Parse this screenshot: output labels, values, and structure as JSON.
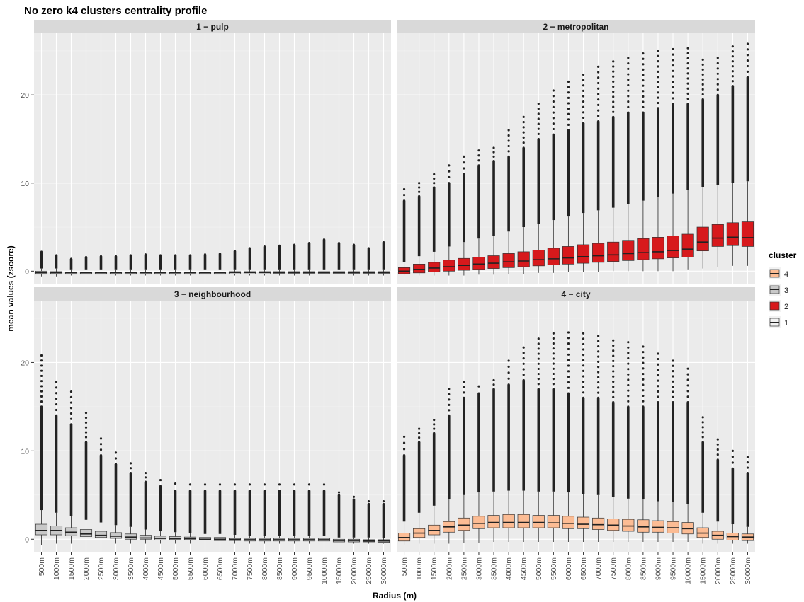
{
  "chart_data": {
    "type": "boxplot",
    "title": "No zero k4  clusters centrality profile",
    "xlabel": "Radius (m)",
    "ylabel": "mean values (zscore)",
    "ylim": [
      -1.5,
      27
    ],
    "yticks": [
      0,
      10,
      20
    ],
    "grid": true,
    "legend": {
      "title": "cluster",
      "placement": "right",
      "entries": [
        {
          "label": "4",
          "color": "#fcbc94"
        },
        {
          "label": "3",
          "color": "#c8c8c8"
        },
        {
          "label": "2",
          "color": "#d7191c"
        },
        {
          "label": "1",
          "color": "#f2f2f2"
        }
      ]
    },
    "categories": [
      "500m",
      "1000m",
      "1500m",
      "2000m",
      "2500m",
      "3000m",
      "3500m",
      "4000m",
      "4500m",
      "5000m",
      "5500m",
      "6000m",
      "6500m",
      "7000m",
      "7500m",
      "8000m",
      "8500m",
      "9000m",
      "9500m",
      "10000m",
      "15000m",
      "20000m",
      "25000m",
      "30000m"
    ],
    "panels": [
      {
        "label": "1 − pulp",
        "color": "#f2f2f2",
        "q1": [
          -0.35,
          -0.35,
          -0.35,
          -0.35,
          -0.35,
          -0.35,
          -0.35,
          -0.35,
          -0.35,
          -0.35,
          -0.35,
          -0.35,
          -0.35,
          -0.3,
          -0.3,
          -0.3,
          -0.25,
          -0.25,
          -0.25,
          -0.25,
          -0.25,
          -0.25,
          -0.25,
          -0.25
        ],
        "median": [
          -0.2,
          -0.2,
          -0.2,
          -0.2,
          -0.2,
          -0.2,
          -0.2,
          -0.2,
          -0.2,
          -0.2,
          -0.2,
          -0.2,
          -0.2,
          -0.15,
          -0.15,
          -0.15,
          -0.15,
          -0.15,
          -0.15,
          -0.15,
          -0.15,
          -0.15,
          -0.15,
          -0.15
        ],
        "q3": [
          0,
          -0.05,
          -0.1,
          -0.1,
          -0.1,
          -0.1,
          -0.1,
          -0.1,
          -0.1,
          -0.1,
          -0.1,
          -0.1,
          -0.1,
          -0.05,
          -0.05,
          -0.05,
          -0.05,
          -0.05,
          -0.05,
          -0.05,
          -0.05,
          -0.05,
          -0.05,
          -0.05
        ],
        "wlo": [
          -0.6,
          -0.6,
          -0.5,
          -0.5,
          -0.5,
          -0.5,
          -0.5,
          -0.5,
          -0.5,
          -0.5,
          -0.5,
          -0.5,
          -0.5,
          -0.5,
          -0.5,
          -0.5,
          -0.5,
          -0.5,
          -0.5,
          -0.5,
          -0.5,
          -0.5,
          -0.5,
          -0.5
        ],
        "whi": [
          0.3,
          0.3,
          0.2,
          0.2,
          0.2,
          0.2,
          0.2,
          0.2,
          0.2,
          0.2,
          0.2,
          0.2,
          0.2,
          0.2,
          0.2,
          0.2,
          0.2,
          0.2,
          0.2,
          0.2,
          0.2,
          0.2,
          0.2,
          0.2
        ],
        "omax": [
          2.2,
          1.8,
          1.4,
          1.6,
          1.7,
          1.7,
          1.8,
          1.9,
          1.8,
          1.8,
          1.8,
          1.9,
          2.0,
          2.3,
          2.6,
          2.8,
          2.9,
          3.0,
          3.2,
          3.6,
          3.2,
          3.0,
          2.6,
          3.3
        ]
      },
      {
        "label": "2 − metropolitan",
        "color": "#d7191c",
        "q1": [
          -0.3,
          -0.2,
          -0.1,
          0,
          0.1,
          0.2,
          0.3,
          0.4,
          0.5,
          0.6,
          0.7,
          0.8,
          0.9,
          1.0,
          1.1,
          1.2,
          1.3,
          1.4,
          1.5,
          1.6,
          2.3,
          2.8,
          2.9,
          2.8
        ],
        "median": [
          0,
          0.2,
          0.35,
          0.5,
          0.65,
          0.8,
          0.9,
          1.05,
          1.15,
          1.3,
          1.4,
          1.5,
          1.65,
          1.75,
          1.85,
          2.0,
          2.1,
          2.2,
          2.35,
          2.5,
          3.3,
          3.75,
          3.85,
          3.8
        ],
        "q3": [
          0.4,
          0.8,
          1.0,
          1.25,
          1.45,
          1.6,
          1.75,
          2.0,
          2.2,
          2.4,
          2.6,
          2.8,
          3.0,
          3.15,
          3.3,
          3.5,
          3.7,
          3.85,
          4.0,
          4.2,
          5.0,
          5.3,
          5.5,
          5.6
        ],
        "wlo": [
          -0.5,
          -0.5,
          -0.5,
          -0.5,
          -0.5,
          -0.4,
          -0.4,
          -0.3,
          -0.3,
          -0.2,
          -0.2,
          -0.1,
          -0.1,
          -0.1,
          0,
          0,
          0,
          0,
          0,
          0.2,
          0.3,
          0.5,
          0.6,
          0.6
        ],
        "whi": [
          1.0,
          1.7,
          2.2,
          2.8,
          3.3,
          3.7,
          4.0,
          4.5,
          5.0,
          5.4,
          5.8,
          6.2,
          6.6,
          6.9,
          7.2,
          7.6,
          8.0,
          8.4,
          8.8,
          9.2,
          9.5,
          9.8,
          10.0,
          10.2
        ],
        "dense": [
          8.0,
          8.5,
          9.5,
          10.0,
          11.0,
          12.0,
          12.5,
          13.0,
          14.0,
          15.0,
          15.5,
          16.0,
          16.8,
          17.0,
          17.5,
          18.0,
          18.0,
          18.5,
          19.0,
          19.0,
          19.5,
          20.0,
          21.0,
          22.0
        ],
        "omax": [
          9.3,
          10.0,
          11.0,
          12.0,
          13.0,
          13.7,
          14.0,
          16.0,
          17.5,
          19.0,
          20.5,
          21.5,
          22.3,
          23.2,
          23.8,
          24.2,
          24.7,
          25.0,
          25.2,
          25.3,
          24.0,
          24.2,
          25.5,
          25.8
        ]
      },
      {
        "label": "3 − neighbourhood",
        "color": "#c8c8c8",
        "q1": [
          0.5,
          0.5,
          0.4,
          0.3,
          0.2,
          0.1,
          0,
          0,
          -0.1,
          -0.1,
          -0.1,
          -0.1,
          -0.15,
          -0.15,
          -0.2,
          -0.2,
          -0.2,
          -0.2,
          -0.2,
          -0.2,
          -0.3,
          -0.3,
          -0.3,
          -0.35
        ],
        "median": [
          1.0,
          1.0,
          0.8,
          0.6,
          0.45,
          0.35,
          0.25,
          0.15,
          0.1,
          0.05,
          0.05,
          0,
          0,
          0,
          -0.05,
          -0.05,
          -0.05,
          -0.05,
          -0.05,
          -0.05,
          -0.15,
          -0.15,
          -0.2,
          -0.2
        ],
        "q3": [
          1.7,
          1.5,
          1.3,
          1.1,
          0.9,
          0.75,
          0.6,
          0.45,
          0.35,
          0.3,
          0.25,
          0.2,
          0.2,
          0.15,
          0.1,
          0.1,
          0.1,
          0.1,
          0.1,
          0.1,
          0,
          0,
          -0.05,
          -0.05
        ],
        "wlo": [
          -0.7,
          -0.5,
          -0.5,
          -0.5,
          -0.5,
          -0.5,
          -0.5,
          -0.5,
          -0.5,
          -0.5,
          -0.5,
          -0.5,
          -0.5,
          -0.5,
          -0.5,
          -0.5,
          -0.5,
          -0.5,
          -0.5,
          -0.5,
          -0.5,
          -0.5,
          -0.5,
          -0.5
        ],
        "whi": [
          3.3,
          3.0,
          2.6,
          2.2,
          1.9,
          1.6,
          1.4,
          1.1,
          0.9,
          0.8,
          0.7,
          0.6,
          0.6,
          0.5,
          0.4,
          0.4,
          0.4,
          0.4,
          0.4,
          0.4,
          0.2,
          0.2,
          0.2,
          0.1
        ],
        "dense": [
          15.0,
          14.0,
          13.0,
          11.0,
          9.5,
          8.5,
          7.5,
          6.5,
          6.0,
          5.5,
          5.5,
          5.5,
          5.5,
          5.5,
          5.5,
          5.5,
          5.5,
          5.5,
          5.5,
          5.5,
          5.0,
          4.5,
          4.0,
          4.0
        ],
        "omax": [
          20.8,
          17.8,
          16.7,
          14.3,
          11.4,
          9.8,
          8.6,
          7.5,
          6.7,
          6.3,
          6.2,
          6.2,
          6.2,
          6.2,
          6.2,
          6.2,
          6.2,
          6.2,
          6.2,
          6.2,
          5.3,
          4.8,
          4.3,
          4.3
        ]
      },
      {
        "label": "4 − city",
        "color": "#fcbc94",
        "q1": [
          -0.2,
          0.2,
          0.5,
          0.8,
          1.0,
          1.2,
          1.3,
          1.3,
          1.3,
          1.3,
          1.3,
          1.2,
          1.2,
          1.1,
          1.0,
          0.9,
          0.8,
          0.8,
          0.7,
          0.6,
          0.2,
          0,
          -0.1,
          -0.15
        ],
        "median": [
          0.2,
          0.7,
          1.0,
          1.4,
          1.6,
          1.8,
          1.9,
          1.9,
          1.9,
          1.9,
          1.85,
          1.8,
          1.7,
          1.65,
          1.6,
          1.5,
          1.4,
          1.35,
          1.3,
          1.2,
          0.7,
          0.45,
          0.3,
          0.25
        ],
        "q3": [
          0.7,
          1.2,
          1.6,
          2.0,
          2.4,
          2.6,
          2.7,
          2.8,
          2.8,
          2.7,
          2.7,
          2.6,
          2.5,
          2.4,
          2.3,
          2.25,
          2.2,
          2.1,
          2.0,
          1.9,
          1.3,
          0.9,
          0.7,
          0.6
        ],
        "wlo": [
          -0.6,
          -0.5,
          -0.5,
          -0.5,
          -0.4,
          -0.4,
          -0.3,
          -0.3,
          -0.3,
          -0.3,
          -0.3,
          -0.3,
          -0.3,
          -0.3,
          -0.3,
          -0.3,
          -0.3,
          -0.3,
          -0.3,
          -0.3,
          -0.5,
          -0.5,
          -0.5,
          -0.5
        ],
        "whi": [
          2.0,
          3.0,
          3.8,
          4.5,
          5.0,
          5.3,
          5.4,
          5.5,
          5.5,
          5.4,
          5.4,
          5.3,
          5.1,
          5.0,
          4.8,
          4.6,
          4.5,
          4.3,
          4.2,
          4.0,
          3.0,
          2.0,
          1.7,
          1.4
        ],
        "dense": [
          9.5,
          11.0,
          12.0,
          14.0,
          16.0,
          16.5,
          17.0,
          17.5,
          18.0,
          17.0,
          17.0,
          16.5,
          16.0,
          16.0,
          15.5,
          15.0,
          15.0,
          15.5,
          15.5,
          15.5,
          11.0,
          9.0,
          8.0,
          7.5
        ],
        "omax": [
          11.6,
          12.5,
          13.5,
          17.0,
          17.8,
          17.3,
          18.0,
          20.2,
          21.7,
          22.7,
          23.3,
          23.4,
          23.3,
          23.0,
          22.5,
          22.3,
          21.8,
          21.0,
          20.2,
          19.3,
          13.8,
          11.3,
          10.0,
          9.3
        ]
      }
    ]
  }
}
